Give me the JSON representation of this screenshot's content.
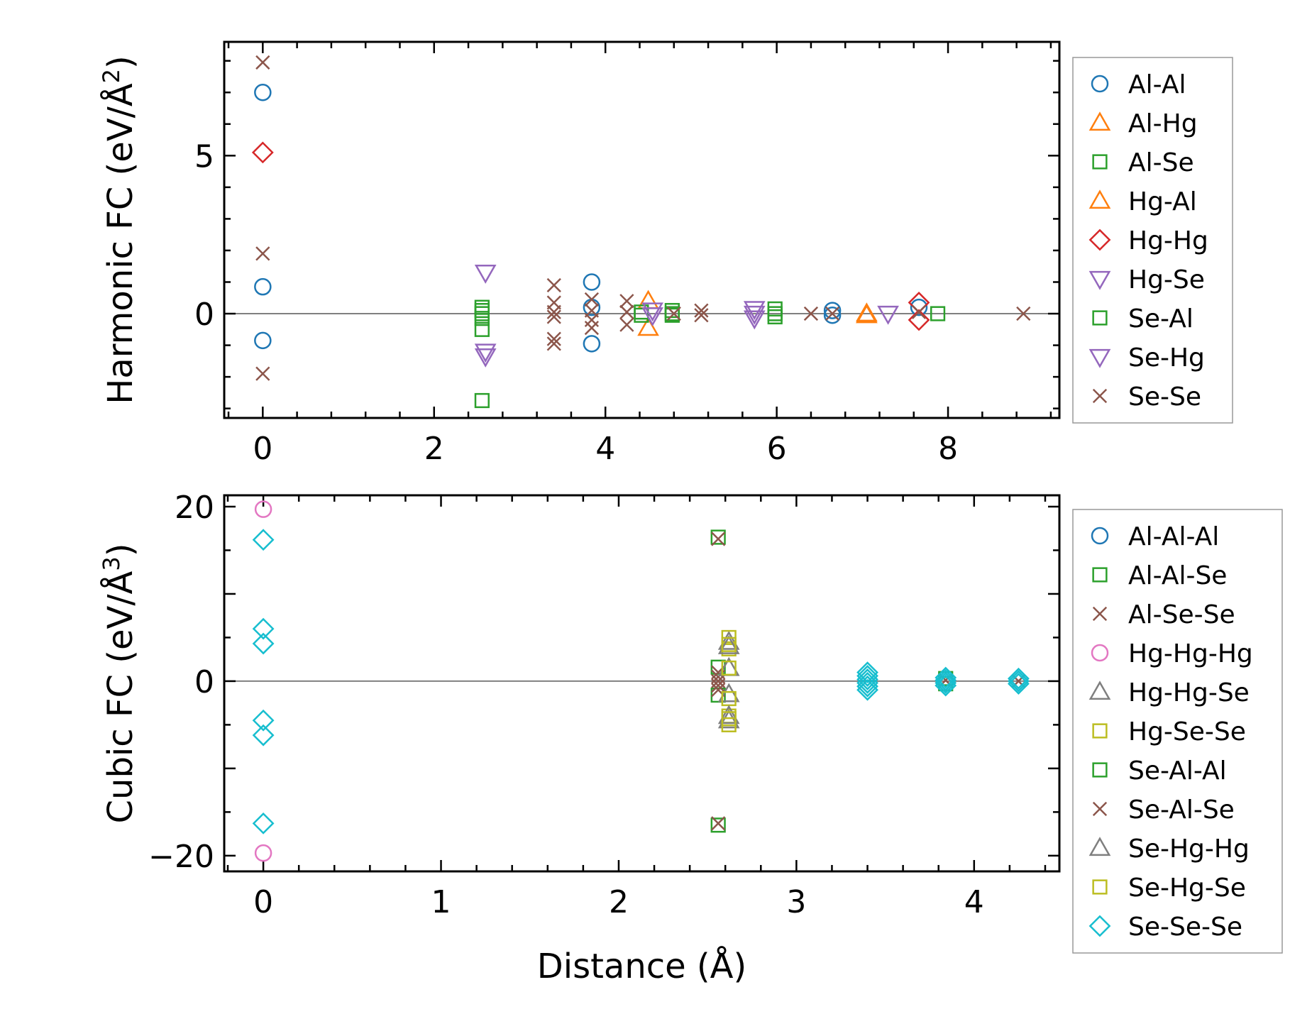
{
  "chart_data": [
    {
      "type": "scatter",
      "id": "harmonic",
      "ylabel": "Harmonic FC (eV/Å²)",
      "ylabel_main": "Harmonic FC (eV/Å",
      "ylabel_sup": "2",
      "ylabel_end": ")",
      "xlabel": "",
      "xlim": [
        -0.45,
        9.3
      ],
      "ylim": [
        -3.3,
        8.6
      ],
      "xticks": [
        0,
        2,
        4,
        6,
        8
      ],
      "xtick_labels": [
        "0",
        "2",
        "4",
        "6",
        "8"
      ],
      "yticks": [
        0,
        5
      ],
      "ytick_labels": [
        "0",
        "5"
      ],
      "zero_line": true,
      "legend_position": "right",
      "series": [
        {
          "name": "Al-Al",
          "marker": "circle",
          "color": "#1f77b4",
          "points": [
            [
              0,
              7.0
            ],
            [
              0,
              0.85
            ],
            [
              0,
              -0.85
            ],
            [
              3.84,
              1.0
            ],
            [
              3.84,
              0.2
            ],
            [
              3.84,
              -0.95
            ],
            [
              6.65,
              0.1
            ],
            [
              6.65,
              -0.05
            ],
            [
              7.66,
              0.2
            ]
          ]
        },
        {
          "name": "Al-Hg",
          "marker": "triangle-up",
          "color": "#ff7f0e",
          "points": [
            [
              4.5,
              0.4
            ],
            [
              4.5,
              -0.45
            ],
            [
              7.05,
              0.0
            ]
          ]
        },
        {
          "name": "Al-Se",
          "marker": "square",
          "color": "#2ca02c",
          "points": [
            [
              2.56,
              0.2
            ],
            [
              2.56,
              0.0
            ],
            [
              2.56,
              -0.15
            ],
            [
              2.56,
              -0.5
            ],
            [
              2.56,
              -2.75
            ],
            [
              4.42,
              0.05
            ],
            [
              4.42,
              -0.05
            ],
            [
              4.78,
              0.1
            ],
            [
              4.78,
              -0.05
            ],
            [
              5.98,
              0.15
            ],
            [
              5.98,
              -0.1
            ],
            [
              7.88,
              0.0
            ]
          ]
        },
        {
          "name": "Hg-Al",
          "marker": "triangle-up",
          "color": "#ff7f0e",
          "points": [
            [
              7.05,
              -0.05
            ]
          ]
        },
        {
          "name": "Hg-Hg",
          "marker": "diamond",
          "color": "#d62728",
          "points": [
            [
              0,
              5.1
            ],
            [
              7.66,
              0.35
            ],
            [
              7.66,
              -0.2
            ]
          ]
        },
        {
          "name": "Hg-Se",
          "marker": "triangle-down",
          "color": "#9467bd",
          "points": [
            [
              2.6,
              1.3
            ],
            [
              2.6,
              -1.35
            ],
            [
              4.55,
              0.1
            ],
            [
              5.74,
              0.15
            ],
            [
              5.74,
              -0.15
            ],
            [
              7.3,
              0.0
            ]
          ]
        },
        {
          "name": "Se-Al",
          "marker": "square",
          "color": "#2ca02c",
          "points": [
            [
              2.56,
              0.1
            ],
            [
              4.78,
              0.0
            ],
            [
              5.98,
              0.0
            ]
          ]
        },
        {
          "name": "Se-Hg",
          "marker": "triangle-down",
          "color": "#9467bd",
          "points": [
            [
              2.6,
              -1.2
            ],
            [
              4.55,
              -0.05
            ],
            [
              5.74,
              0.0
            ]
          ]
        },
        {
          "name": "Se-Se",
          "marker": "x",
          "color": "#8c564b",
          "points": [
            [
              0,
              7.95
            ],
            [
              0,
              1.9
            ],
            [
              0,
              -1.9
            ],
            [
              3.4,
              0.9
            ],
            [
              3.4,
              0.35
            ],
            [
              3.4,
              0.05
            ],
            [
              3.4,
              -0.1
            ],
            [
              3.4,
              -0.8
            ],
            [
              3.4,
              -0.95
            ],
            [
              3.84,
              0.45
            ],
            [
              3.84,
              0.1
            ],
            [
              3.84,
              -0.2
            ],
            [
              3.84,
              -0.45
            ],
            [
              4.25,
              0.4
            ],
            [
              4.25,
              0.05
            ],
            [
              4.25,
              -0.35
            ],
            [
              4.8,
              0.0
            ],
            [
              5.12,
              0.1
            ],
            [
              5.12,
              -0.05
            ],
            [
              6.4,
              0.0
            ],
            [
              6.65,
              0.0
            ],
            [
              7.66,
              0.05
            ],
            [
              8.88,
              0.0
            ]
          ]
        }
      ]
    },
    {
      "type": "scatter",
      "id": "cubic",
      "ylabel": "Cubic FC (eV/Å³)",
      "ylabel_main": "Cubic FC (eV/Å",
      "ylabel_sup": "3",
      "ylabel_end": ")",
      "xlabel": "Distance (Å)",
      "xlim": [
        -0.22,
        4.48
      ],
      "ylim": [
        -21.8,
        21.3
      ],
      "xticks": [
        0,
        1,
        2,
        3,
        4
      ],
      "xtick_labels": [
        "0",
        "1",
        "2",
        "3",
        "4"
      ],
      "yticks": [
        20,
        0,
        -20
      ],
      "ytick_labels": [
        "20",
        "0",
        "−20"
      ],
      "zero_line": true,
      "legend_position": "right",
      "series": [
        {
          "name": "Al-Al-Al",
          "marker": "circle",
          "color": "#1f77b4",
          "points": []
        },
        {
          "name": "Al-Al-Se",
          "marker": "square",
          "color": "#2ca02c",
          "points": [
            [
              2.56,
              16.5
            ],
            [
              2.56,
              -16.5
            ],
            [
              2.56,
              1.6
            ],
            [
              2.56,
              -1.6
            ]
          ]
        },
        {
          "name": "Al-Se-Se",
          "marker": "x",
          "color": "#8c564b",
          "points": [
            [
              2.56,
              16.3
            ],
            [
              2.56,
              -16.3
            ],
            [
              2.56,
              1.0
            ],
            [
              2.56,
              0.5
            ],
            [
              2.56,
              0.0
            ],
            [
              2.56,
              -0.5
            ],
            [
              2.56,
              -1.0
            ]
          ]
        },
        {
          "name": "Hg-Hg-Hg",
          "marker": "circle",
          "color": "#e377c2",
          "points": [
            [
              0,
              19.7
            ],
            [
              0,
              -19.7
            ]
          ]
        },
        {
          "name": "Hg-Hg-Se",
          "marker": "triangle-up",
          "color": "#7f7f7f",
          "points": [
            [
              2.62,
              4.5
            ],
            [
              2.62,
              1.5
            ],
            [
              2.62,
              -1.5
            ],
            [
              2.62,
              -4.5
            ]
          ]
        },
        {
          "name": "Hg-Se-Se",
          "marker": "square",
          "color": "#bcbd22",
          "points": [
            [
              2.62,
              5.0
            ],
            [
              2.62,
              3.7
            ],
            [
              2.62,
              1.5
            ],
            [
              2.62,
              -2.0
            ],
            [
              2.62,
              -4.0
            ],
            [
              2.62,
              -5.0
            ]
          ]
        },
        {
          "name": "Se-Al-Al",
          "marker": "square",
          "color": "#2ca02c",
          "points": [
            [
              3.84,
              0.3
            ],
            [
              3.84,
              -0.3
            ]
          ]
        },
        {
          "name": "Se-Al-Se",
          "marker": "x",
          "color": "#8c564b",
          "points": [
            [
              3.84,
              0.1
            ],
            [
              4.25,
              0.0
            ]
          ]
        },
        {
          "name": "Se-Hg-Hg",
          "marker": "triangle-up",
          "color": "#7f7f7f",
          "points": [
            [
              2.62,
              4.0
            ],
            [
              2.62,
              -4.0
            ]
          ]
        },
        {
          "name": "Se-Hg-Se",
          "marker": "square",
          "color": "#bcbd22",
          "points": [
            [
              2.62,
              4.2
            ],
            [
              2.62,
              -4.3
            ]
          ]
        },
        {
          "name": "Se-Se-Se",
          "marker": "diamond",
          "color": "#17becf",
          "points": [
            [
              0,
              16.2
            ],
            [
              0,
              6.0
            ],
            [
              0,
              4.3
            ],
            [
              0,
              -4.5
            ],
            [
              0,
              -6.2
            ],
            [
              0,
              -16.3
            ],
            [
              3.4,
              1.0
            ],
            [
              3.4,
              0.6
            ],
            [
              3.4,
              0.2
            ],
            [
              3.4,
              -0.2
            ],
            [
              3.4,
              -0.6
            ],
            [
              3.4,
              -1.0
            ],
            [
              3.84,
              0.4
            ],
            [
              3.84,
              0.1
            ],
            [
              3.84,
              -0.2
            ],
            [
              3.84,
              -0.5
            ],
            [
              4.25,
              0.3
            ],
            [
              4.25,
              0.0
            ],
            [
              4.25,
              -0.3
            ]
          ]
        }
      ]
    }
  ]
}
